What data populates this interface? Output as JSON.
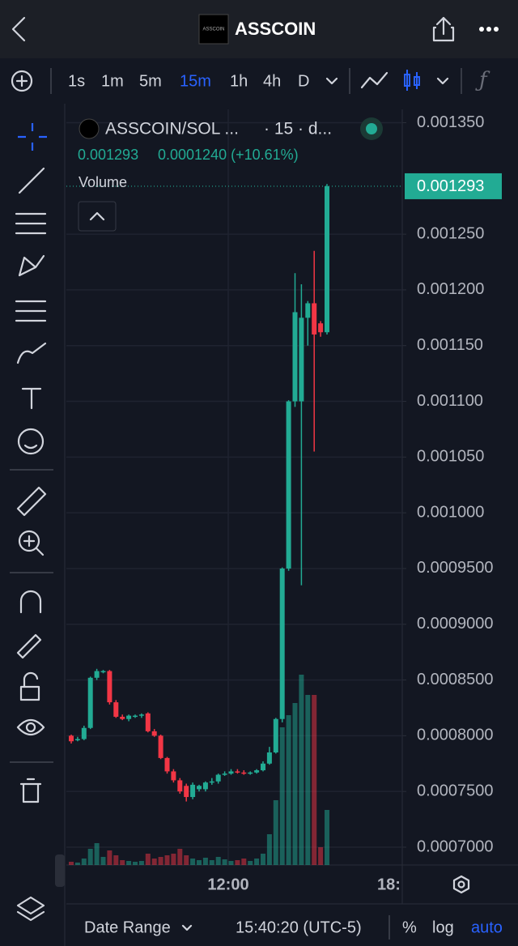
{
  "header": {
    "title": "ASSCOIN",
    "logo_text": "ASSCOIN"
  },
  "toolbar": {
    "intervals": [
      "1s",
      "1m",
      "5m",
      "15m",
      "1h",
      "4h",
      "D"
    ],
    "active_interval": 3
  },
  "chart_data": {
    "type": "candlestick",
    "title": "ASSCOIN/SOL ...",
    "subtitle": "· 15 · d...",
    "last_value": "0.001293",
    "change": "0.0001240 (+10.61%)",
    "volume_label": "Volume",
    "price_label": "0.001293",
    "up_color": "#22ab94",
    "down_color": "#f23645",
    "ylim": [
      0.000684,
      0.001362
    ],
    "yticks": [
      {
        "value": 0.00135,
        "label": "0.001350"
      },
      {
        "value": 0.00125,
        "label": "0.001250"
      },
      {
        "value": 0.0012,
        "label": "0.001200"
      },
      {
        "value": 0.00115,
        "label": "0.001150"
      },
      {
        "value": 0.0011,
        "label": "0.001100"
      },
      {
        "value": 0.00105,
        "label": "0.001050"
      },
      {
        "value": 0.001,
        "label": "0.001000"
      },
      {
        "value": 0.00095,
        "label": "0.0009500"
      },
      {
        "value": 0.0009,
        "label": "0.0009000"
      },
      {
        "value": 0.00085,
        "label": "0.0008500"
      },
      {
        "value": 0.0008,
        "label": "0.0008000"
      },
      {
        "value": 0.00075,
        "label": "0.0007500"
      },
      {
        "value": 0.0007,
        "label": "0.0007000"
      }
    ],
    "xticks": [
      "12:00",
      "18:"
    ],
    "open": [
      0.0008,
      0.000797,
      0.000797,
      0.000807,
      0.000852,
      0.000858,
      0.000858,
      0.00083,
      0.000817,
      0.000815,
      0.000818,
      0.000818,
      0.00082,
      0.000804,
      0.0008,
      0.00078,
      0.000768,
      0.00076,
      0.000755,
      0.000745,
      0.000752,
      0.000752,
      0.000758,
      0.000759,
      0.000765,
      0.000766,
      0.000768,
      0.000767,
      0.000766,
      0.000767,
      0.000769,
      0.000775,
      0.000785,
      0.000815,
      0.00095,
      0.0011,
      0.0011,
      0.001175,
      0.001188,
      0.00117,
      0.001162
    ],
    "high": [
      0.000801,
      0.000799,
      0.000809,
      0.000853,
      0.00086,
      0.000859,
      0.000859,
      0.000832,
      0.000819,
      0.000819,
      0.000819,
      0.00082,
      0.000821,
      0.000806,
      0.000801,
      0.000781,
      0.00077,
      0.000762,
      0.000757,
      0.000758,
      0.000756,
      0.000759,
      0.000762,
      0.000766,
      0.000768,
      0.00077,
      0.00077,
      0.000769,
      0.000768,
      0.00077,
      0.000777,
      0.00079,
      0.000816,
      0.000951,
      0.001101,
      0.001215,
      0.001205,
      0.00119,
      0.001235,
      0.001172,
      0.001295
    ],
    "low": [
      0.000793,
      0.000795,
      0.000796,
      0.000806,
      0.00085,
      0.000856,
      0.000828,
      0.000816,
      0.000814,
      0.000813,
      0.000816,
      0.000816,
      0.000803,
      0.000799,
      0.000779,
      0.000766,
      0.000758,
      0.000748,
      0.000741,
      0.000743,
      0.00075,
      0.00075,
      0.000756,
      0.000757,
      0.000764,
      0.000765,
      0.000766,
      0.000765,
      0.000765,
      0.000766,
      0.000768,
      0.000774,
      0.000784,
      0.000812,
      0.000948,
      0.001095,
      0.000935,
      0.00115,
      0.001055,
      0.001158,
      0.00116
    ],
    "close": [
      0.000795,
      0.000797,
      0.000807,
      0.000852,
      0.000858,
      0.000858,
      0.00083,
      0.000817,
      0.000815,
      0.000818,
      0.000818,
      0.000819,
      0.000804,
      0.0008,
      0.00078,
      0.000768,
      0.00076,
      0.00075,
      0.000745,
      0.000756,
      0.000755,
      0.000758,
      0.000759,
      0.000765,
      0.000766,
      0.000768,
      0.000767,
      0.000766,
      0.000767,
      0.000769,
      0.000775,
      0.000785,
      0.000815,
      0.00095,
      0.0011,
      0.00118,
      0.001175,
      0.001188,
      0.00116,
      0.001162,
      0.001293
    ],
    "volume": [
      4,
      3,
      8,
      20,
      27,
      10,
      18,
      12,
      6,
      5,
      4,
      5,
      14,
      8,
      10,
      12,
      14,
      20,
      12,
      8,
      6,
      9,
      6,
      10,
      7,
      5,
      6,
      8,
      5,
      8,
      14,
      38,
      80,
      170,
      185,
      200,
      235,
      210,
      210,
      22,
      68
    ]
  },
  "footer": {
    "date_range": "Date Range",
    "clock": "15:40:20 (UTC-5)",
    "percent": "%",
    "log": "log",
    "auto": "auto"
  }
}
